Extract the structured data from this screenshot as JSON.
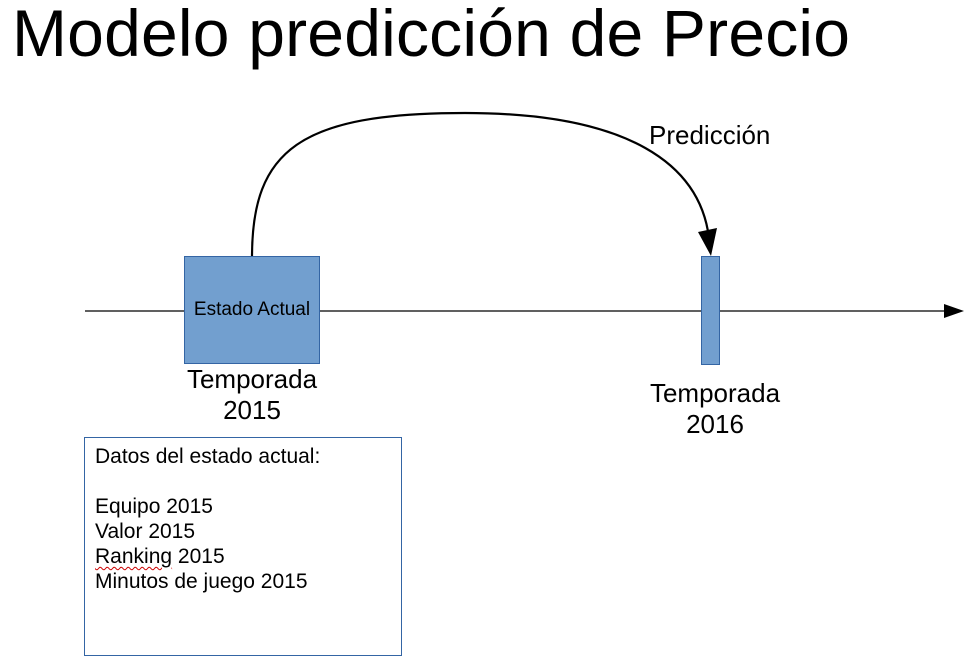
{
  "title": "Modelo predicción de Precio",
  "prediction_label": "Predicción",
  "current_state": {
    "box_label": "Estado Actual",
    "season_line1": "Temporada",
    "season_line2": "2015"
  },
  "target_state": {
    "season_line1": "Temporada",
    "season_line2": "2016"
  },
  "data_box": {
    "heading": "Datos del estado actual:",
    "items": [
      {
        "word": "Equipo",
        "year": "2015"
      },
      {
        "word": "Valor",
        "year": "2015"
      },
      {
        "word": "Ranking",
        "year": "2015"
      },
      {
        "word": "Minutos de juego",
        "year": "2015"
      }
    ]
  },
  "colors": {
    "box_fill": "#729fcf",
    "box_border": "#3465a4",
    "line": "#000000"
  }
}
